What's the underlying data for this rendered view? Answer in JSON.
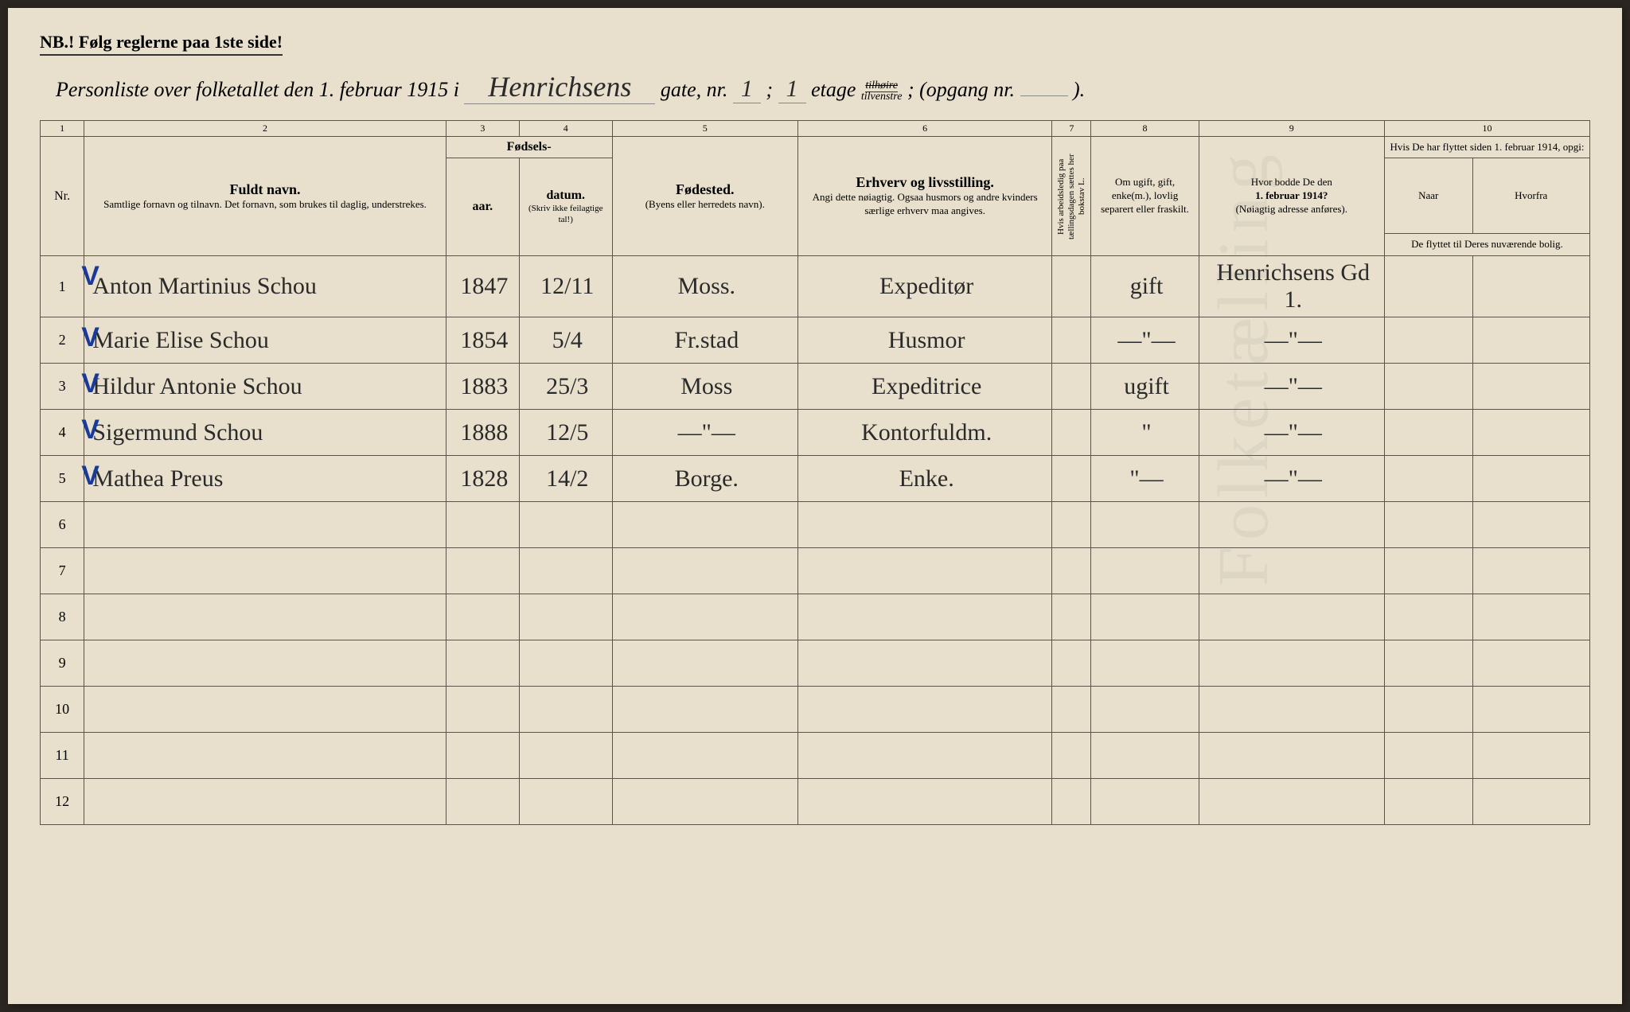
{
  "header": {
    "nb": "NB.! Følg reglerne paa 1ste side!",
    "title_prefix": "Personliste over folketallet den 1. februar 1915 i",
    "street": "Henrichsens",
    "gate_label": "gate, nr.",
    "gate_nr": "1",
    "semicolon": ";",
    "etage_nr": "1",
    "etage_label": "etage",
    "side_top": "tilhøire",
    "side_bottom": "tilvenstre",
    "opgang_label": "; (opgang nr.",
    "opgang_nr": "",
    "closing": ")."
  },
  "columns": {
    "numbers": [
      "1",
      "2",
      "3",
      "4",
      "5",
      "6",
      "7",
      "8",
      "9",
      "10"
    ],
    "nr": "Nr.",
    "fuldt_navn": "Fuldt navn.",
    "fuldt_sub": "Samtlige fornavn og tilnavn.  Det fornavn, som brukes til daglig, understrekes.",
    "fodsels": "Fødsels-",
    "aar": "aar.",
    "datum": "datum.",
    "skriv": "(Skriv ikke feilagtige tal!)",
    "fodested": "Fødested.",
    "fodested_sub": "(Byens eller herredets navn).",
    "erhverv": "Erhverv og livsstilling.",
    "erhverv_sub": "Angi dette nøiagtig. Ogsaa husmors og andre kvinders særlige erhverv maa angives.",
    "col7": "Hvis arbeidsledig paa tællingsdagen sættes her bokstav L.",
    "col8": "Om ugift, gift, enke(m.), lovlig separert eller fraskilt.",
    "col9_a": "Hvor bodde De den",
    "col9_b": "1. februar 1914?",
    "col9_c": "(Nøiagtig adresse anføres).",
    "col10_a": "Hvis De har flyttet siden 1. februar 1914, opgi:",
    "naar": "Naar",
    "hvorfra": "Hvorfra",
    "col10_b": "De flyttet til Deres nuværende bolig."
  },
  "rows": [
    {
      "n": "1",
      "check": true,
      "name": "Anton Martinius Schou",
      "aar": "1847",
      "dat": "12/11",
      "sted": "Moss.",
      "erhv": "Expeditør",
      "c7": "",
      "c8": "gift",
      "c9": "Henrichsens Gd 1.",
      "c10a": "",
      "c10b": ""
    },
    {
      "n": "2",
      "check": true,
      "name": "Marie Elise Schou",
      "aar": "1854",
      "dat": "5/4",
      "sted": "Fr.stad",
      "erhv": "Husmor",
      "c7": "",
      "c8": "—\"—",
      "c9": "—\"—",
      "c10a": "",
      "c10b": ""
    },
    {
      "n": "3",
      "check": true,
      "name": "Hildur Antonie Schou",
      "aar": "1883",
      "dat": "25/3",
      "sted": "Moss",
      "erhv": "Expeditrice",
      "c7": "",
      "c8": "ugift",
      "c9": "—\"—",
      "c10a": "",
      "c10b": ""
    },
    {
      "n": "4",
      "check": true,
      "name": "Sigermund Schou",
      "aar": "1888",
      "dat": "12/5",
      "sted": "—\"—",
      "erhv": "Kontorfuldm.",
      "c7": "",
      "c8": "\"",
      "c9": "—\"—",
      "c10a": "",
      "c10b": ""
    },
    {
      "n": "5",
      "check": true,
      "name": "Mathea Preus",
      "aar": "1828",
      "dat": "14/2",
      "sted": "Borge.",
      "erhv": "Enke.",
      "c7": "",
      "c8": "\"—",
      "c9": "—\"—",
      "c10a": "",
      "c10b": ""
    },
    {
      "n": "6",
      "check": false,
      "name": "",
      "aar": "",
      "dat": "",
      "sted": "",
      "erhv": "",
      "c7": "",
      "c8": "",
      "c9": "",
      "c10a": "",
      "c10b": ""
    },
    {
      "n": "7",
      "check": false,
      "name": "",
      "aar": "",
      "dat": "",
      "sted": "",
      "erhv": "",
      "c7": "",
      "c8": "",
      "c9": "",
      "c10a": "",
      "c10b": ""
    },
    {
      "n": "8",
      "check": false,
      "name": "",
      "aar": "",
      "dat": "",
      "sted": "",
      "erhv": "",
      "c7": "",
      "c8": "",
      "c9": "",
      "c10a": "",
      "c10b": ""
    },
    {
      "n": "9",
      "check": false,
      "name": "",
      "aar": "",
      "dat": "",
      "sted": "",
      "erhv": "",
      "c7": "",
      "c8": "",
      "c9": "",
      "c10a": "",
      "c10b": ""
    },
    {
      "n": "10",
      "check": false,
      "name": "",
      "aar": "",
      "dat": "",
      "sted": "",
      "erhv": "",
      "c7": "",
      "c8": "",
      "c9": "",
      "c10a": "",
      "c10b": ""
    },
    {
      "n": "11",
      "check": false,
      "name": "",
      "aar": "",
      "dat": "",
      "sted": "",
      "erhv": "",
      "c7": "",
      "c8": "",
      "c9": "",
      "c10a": "",
      "c10b": ""
    },
    {
      "n": "12",
      "check": false,
      "name": "",
      "aar": "",
      "dat": "",
      "sted": "",
      "erhv": "",
      "c7": "",
      "c8": "",
      "c9": "",
      "c10a": "",
      "c10b": ""
    }
  ],
  "watermark": "Folketælling"
}
